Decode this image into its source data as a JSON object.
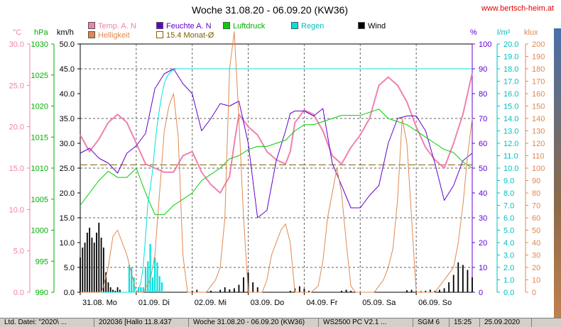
{
  "header": {
    "title": "Woche 31.08.20 - 06.09.20 (KW36)",
    "site": "www.bertsch-heim.at"
  },
  "legend": [
    {
      "label": "Temp. A. N",
      "color": "#f080b0"
    },
    {
      "label": "Helligkeit",
      "color": "#e08850"
    },
    {
      "label": "Feuchte A. N",
      "color": "#6000d0"
    },
    {
      "label": "15.4 Monat-Ø",
      "color": "#f0f0c0"
    },
    {
      "label": "Luftdruck",
      "color": "#00d000"
    },
    {
      "label": "Regen",
      "color": "#00e0e0"
    },
    {
      "label": "Wind",
      "color": "#000000"
    }
  ],
  "axis_units": {
    "temp": "°C",
    "pressure": "hPa",
    "wind": "km/h",
    "humidity": "%",
    "rain": "l/m²",
    "light": "klux"
  },
  "status_bar": [
    "Ltd. Datei: \"2020\\ ...",
    "202036 [Hallo 11.8.437",
    "Woche 31.08.20 - 06.09.20 (KW36)",
    "WS2500 PC V2.1 ...",
    "SGM 6",
    "15:25",
    "25.09.2020"
  ],
  "chart_data": {
    "type": "line",
    "title": "Woche 31.08.20 - 06.09.20 (KW36)",
    "x_labels": [
      "31.08.  Mo",
      "01.09.  Di",
      "02.09.  Mi",
      "03.09.  Do",
      "04.09.  Fr",
      "05.09.  Sa",
      "06.09.  So"
    ],
    "x_range_hours": [
      0,
      168
    ],
    "axes": {
      "temp": {
        "unit": "°C",
        "min": 0,
        "max": 30,
        "ticks": [
          "0.0",
          "5.0",
          "10.0",
          "15.0",
          "20.0",
          "25.0",
          "30.0"
        ],
        "color": "#f080b0"
      },
      "pressure": {
        "unit": "hPa",
        "min": 990,
        "max": 1030,
        "ticks": [
          "990",
          "995",
          "1000",
          "1005",
          "1010",
          "1015",
          "1020",
          "1025",
          "1030"
        ],
        "color": "#00b000"
      },
      "wind": {
        "unit": "km/h",
        "min": 0,
        "max": 50,
        "ticks": [
          "0.0",
          "5.0",
          "10.0",
          "15.0",
          "20.0",
          "25.0",
          "30.0",
          "35.0",
          "40.0",
          "45.0",
          "50.0"
        ],
        "color": "#000000"
      },
      "humidity": {
        "unit": "%",
        "min": 0,
        "max": 100,
        "ticks": [
          "0",
          "10",
          "20",
          "30",
          "40",
          "50",
          "60",
          "70",
          "80",
          "90",
          "100"
        ],
        "color": "#6000d0"
      },
      "rain": {
        "unit": "l/m²",
        "min": 0,
        "max": 20,
        "ticks": [
          "0.0",
          "1.0",
          "2.0",
          "3.0",
          "4.0",
          "5.0",
          "6.0",
          "7.0",
          "8.0",
          "9.0",
          "10.0",
          "11.0",
          "12.0",
          "13.0",
          "14.0",
          "15.0",
          "16.0",
          "17.0",
          "18.0",
          "19.0",
          "20.0"
        ],
        "color": "#00c0c0"
      },
      "light": {
        "unit": "klux",
        "min": 0,
        "max": 200,
        "ticks": [
          "0",
          "10",
          "20",
          "30",
          "40",
          "50",
          "60",
          "70",
          "80",
          "90",
          "100",
          "110",
          "120",
          "130",
          "140",
          "150",
          "160",
          "170",
          "180",
          "190",
          "200"
        ],
        "color": "#e08850"
      }
    },
    "monthly_avg_temp": 15.4,
    "series": [
      {
        "name": "Temp. A. N",
        "axis": "temp",
        "color": "#f080b0",
        "width": 2,
        "x": [
          0,
          4,
          8,
          12,
          16,
          20,
          24,
          28,
          32,
          36,
          40,
          44,
          48,
          52,
          56,
          60,
          64,
          66,
          68,
          72,
          76,
          80,
          84,
          88,
          90,
          92,
          96,
          100,
          104,
          108,
          112,
          116,
          120,
          124,
          128,
          132,
          136,
          140,
          144,
          148,
          152,
          156,
          160,
          164,
          168
        ],
        "values": [
          19,
          17,
          18.5,
          20.5,
          21.5,
          20.5,
          18,
          15.5,
          15,
          14.5,
          14.5,
          16.5,
          17,
          14.5,
          13,
          12,
          14,
          18,
          21.5,
          20,
          19,
          17,
          16,
          15.5,
          17,
          20.5,
          22,
          21.5,
          19.5,
          16.5,
          15.5,
          17.5,
          19,
          21,
          25,
          26,
          25,
          23,
          20,
          17.5,
          16,
          15,
          18,
          21.5,
          26.5
        ]
      },
      {
        "name": "Feuchte A. N",
        "axis": "humidity",
        "color": "#6000d0",
        "width": 1,
        "x": [
          0,
          4,
          8,
          12,
          16,
          20,
          24,
          28,
          32,
          36,
          40,
          44,
          48,
          52,
          56,
          60,
          64,
          68,
          72,
          74,
          76,
          80,
          84,
          88,
          90,
          92,
          96,
          100,
          104,
          108,
          112,
          116,
          120,
          124,
          128,
          132,
          136,
          140,
          144,
          148,
          152,
          156,
          160,
          164,
          168
        ],
        "values": [
          56,
          58,
          54,
          52,
          48,
          56,
          59,
          64,
          82,
          88,
          90,
          84,
          80,
          65,
          70,
          76,
          75,
          77,
          60,
          45,
          30,
          33,
          53,
          65,
          72,
          73,
          73,
          71,
          74,
          52,
          43,
          34,
          34,
          39,
          43,
          60,
          70,
          71,
          71,
          65,
          52,
          37,
          43,
          53,
          56
        ]
      },
      {
        "name": "Luftdruck",
        "axis": "pressure",
        "color": "#00d000",
        "width": 1,
        "x": [
          0,
          4,
          8,
          12,
          16,
          20,
          24,
          28,
          32,
          36,
          40,
          44,
          48,
          52,
          56,
          60,
          64,
          68,
          72,
          76,
          80,
          84,
          88,
          92,
          96,
          100,
          104,
          108,
          112,
          116,
          120,
          124,
          128,
          132,
          136,
          140,
          144,
          148,
          152,
          156,
          160,
          164,
          168
        ],
        "values": [
          1004,
          1006,
          1008,
          1009.5,
          1008.5,
          1008.5,
          1010,
          1006,
          1002.5,
          1002.5,
          1004,
          1005,
          1006,
          1008,
          1009,
          1010,
          1011.5,
          1012,
          1013,
          1013.5,
          1013.5,
          1014,
          1014.5,
          1016,
          1017,
          1017,
          1017.5,
          1018,
          1018.5,
          1018.5,
          1018.5,
          1019,
          1019.5,
          1018,
          1017.5,
          1017,
          1016,
          1015,
          1014,
          1013,
          1012.5,
          1011,
          1010
        ]
      },
      {
        "name": "Regen",
        "axis": "rain",
        "color": "#00e0e0",
        "width": 1,
        "x": [
          0,
          24,
          25,
          26,
          27,
          28,
          29,
          30,
          31,
          32,
          33,
          34,
          35,
          36,
          37,
          38,
          39,
          40,
          41,
          42,
          43,
          44,
          168
        ],
        "values": [
          0,
          0,
          0.2,
          0.8,
          2.1,
          4.5,
          7.2,
          8.4,
          9.8,
          11.8,
          13.5,
          14.8,
          15.9,
          16.8,
          17.3,
          17.6,
          17.8,
          17.9,
          18.0,
          18.0,
          18.0,
          18.0,
          18.0
        ]
      },
      {
        "name": "Helligkeit",
        "axis": "light",
        "color": "#e08850",
        "width": 1,
        "x": [
          0,
          3,
          6,
          9,
          10,
          12,
          14,
          16,
          18,
          20,
          22,
          24,
          27,
          30,
          32,
          34,
          36,
          38,
          40,
          42,
          44,
          46,
          48,
          51,
          54,
          56,
          58,
          60,
          62,
          64,
          66,
          68,
          70,
          72,
          75,
          78,
          80,
          82,
          84,
          86,
          88,
          90,
          92,
          94,
          96,
          99,
          102,
          104,
          106,
          108,
          110,
          112,
          114,
          116,
          118,
          120,
          123,
          126,
          128,
          130,
          132,
          134,
          136,
          138,
          140,
          142,
          144,
          147,
          150,
          152,
          154,
          156,
          158,
          160,
          162,
          164,
          166,
          168
        ],
        "values": [
          0,
          0,
          0,
          0,
          5,
          20,
          45,
          50,
          40,
          30,
          15,
          0,
          0,
          10,
          30,
          80,
          130,
          150,
          160,
          125,
          30,
          0,
          0,
          0,
          0,
          5,
          10,
          20,
          60,
          180,
          210,
          140,
          60,
          0,
          0,
          0,
          10,
          30,
          40,
          50,
          55,
          40,
          0,
          0,
          0,
          0,
          5,
          25,
          60,
          80,
          100,
          80,
          40,
          5,
          0,
          0,
          0,
          0,
          5,
          10,
          20,
          35,
          75,
          140,
          120,
          60,
          0,
          0,
          0,
          0,
          5,
          10,
          15,
          20,
          40,
          70,
          110,
          140
        ]
      }
    ],
    "bar_series": [
      {
        "name": "Regen",
        "axis": "rain",
        "color": "#00e0e0",
        "x": [
          21,
          22,
          23,
          25,
          26,
          27,
          28,
          29,
          30,
          31,
          32,
          33,
          34,
          35
        ],
        "values": [
          2.2,
          2.0,
          1.2,
          0.4,
          0.4,
          0.4,
          2.0,
          2.5,
          3.9,
          1.2,
          2.8,
          2.4,
          1.3,
          0.8
        ]
      },
      {
        "name": "Wind",
        "axis": "wind",
        "color": "#000000",
        "x": [
          0,
          1,
          2,
          3,
          4,
          5,
          6,
          7,
          8,
          9,
          10,
          11,
          12,
          13,
          14,
          15,
          16,
          17,
          18,
          48,
          50,
          56,
          60,
          62,
          64,
          66,
          68,
          70,
          72,
          74,
          76,
          90,
          92,
          94,
          96,
          98,
          112,
          114,
          116,
          140,
          142,
          144,
          146,
          148,
          150,
          152,
          154,
          156,
          158,
          160,
          162,
          164,
          166,
          168
        ],
        "values": [
          7,
          9,
          10,
          12,
          13,
          11,
          10,
          12,
          14,
          11,
          9,
          4,
          2,
          1,
          0.5,
          0.3,
          1,
          0.5,
          0,
          0.3,
          0.5,
          0.3,
          0.5,
          1,
          0.6,
          0.8,
          1.5,
          3,
          4,
          2,
          1,
          0.3,
          0.8,
          1.2,
          0.7,
          0.3,
          0.3,
          0.5,
          0.3,
          0.4,
          0.5,
          0.3,
          0.2,
          0.3,
          0.5,
          0.3,
          0.5,
          0.8,
          2,
          3.5,
          6,
          5.5,
          4.5,
          3
        ]
      }
    ]
  }
}
